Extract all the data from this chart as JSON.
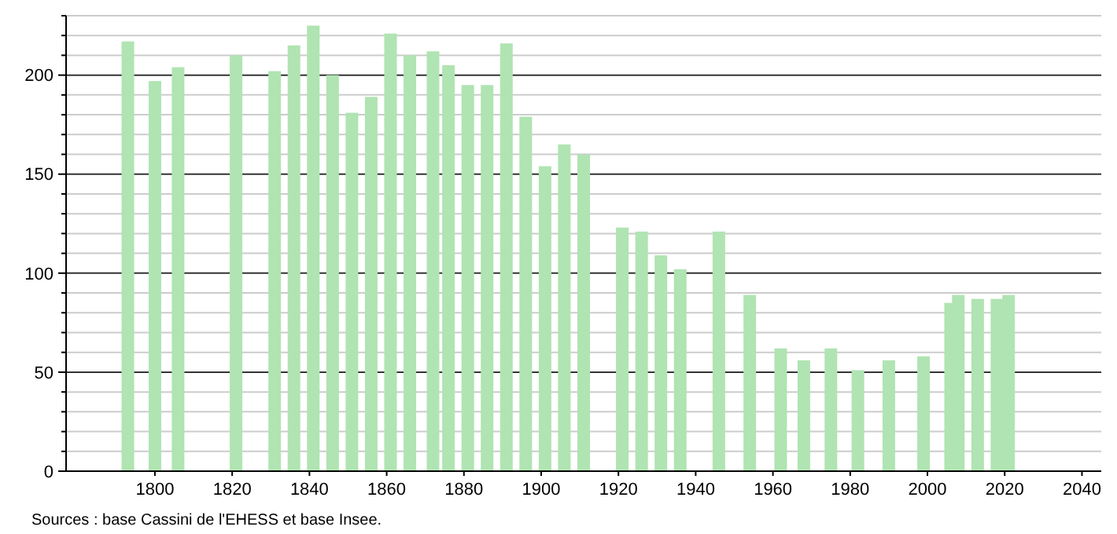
{
  "chart_data": {
    "type": "bar",
    "x": [
      1793,
      1800,
      1806,
      1821,
      1831,
      1836,
      1841,
      1846,
      1851,
      1856,
      1861,
      1866,
      1872,
      1876,
      1881,
      1886,
      1891,
      1896,
      1901,
      1906,
      1911,
      1921,
      1926,
      1931,
      1936,
      1946,
      1954,
      1962,
      1968,
      1975,
      1982,
      1990,
      1999,
      2006,
      2008,
      2013,
      2018,
      2021
    ],
    "values": [
      217,
      197,
      204,
      210,
      202,
      215,
      225,
      200,
      181,
      189,
      221,
      210,
      212,
      205,
      195,
      195,
      216,
      179,
      154,
      165,
      160,
      123,
      121,
      109,
      102,
      121,
      89,
      62,
      56,
      62,
      51,
      56,
      58,
      85,
      89,
      87,
      87,
      89
    ],
    "color": "#b0e4b2",
    "xlim": [
      1777,
      2045
    ],
    "xticks": [
      1800,
      1820,
      1840,
      1860,
      1880,
      1900,
      1920,
      1940,
      1960,
      1980,
      2000,
      2020,
      2040
    ],
    "ylim": [
      0,
      230
    ],
    "yticks": [
      0,
      {
        "value": 10,
        "label": null
      },
      {
        "value": 20,
        "label": null
      },
      {
        "value": 30,
        "label": null
      },
      {
        "value": 40,
        "label": null
      },
      50,
      {
        "value": 60,
        "label": null
      },
      {
        "value": 70,
        "label": null
      },
      {
        "value": 80,
        "label": null
      },
      {
        "value": 90,
        "label": null
      },
      100,
      {
        "value": 110,
        "label": null
      },
      {
        "value": 120,
        "label": null
      },
      {
        "value": 130,
        "label": null
      },
      {
        "value": 140,
        "label": null
      },
      150,
      {
        "value": 160,
        "label": null
      },
      {
        "value": 170,
        "label": null
      },
      {
        "value": 180,
        "label": null
      },
      {
        "value": 190,
        "label": null
      },
      200,
      {
        "value": 210,
        "label": null
      },
      {
        "value": 220,
        "label": null
      },
      {
        "value": 230,
        "label": null
      }
    ],
    "grid": true,
    "annotations": [
      "Sources : base Cassini de l'EHESS et base Insee."
    ]
  }
}
